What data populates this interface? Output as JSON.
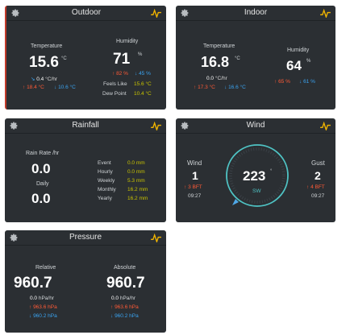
{
  "outdoor": {
    "title": "Outdoor",
    "temperature": {
      "label": "Temperature",
      "value": "15.6",
      "unit": "°C",
      "trend": "0.4",
      "trend_unit": "°C/hr",
      "max": "18.4 °C",
      "min": "10.6 °C"
    },
    "humidity": {
      "label": "Humidity",
      "value": "71",
      "unit": "%",
      "max": "82 %",
      "min": "45 %"
    },
    "feels_like": {
      "label": "Feels Like",
      "value": "15.6 °C"
    },
    "dew_point": {
      "label": "Dew Point",
      "value": "10.4 °C"
    }
  },
  "indoor": {
    "title": "Indoor",
    "temperature": {
      "label": "Temperature",
      "value": "16.8",
      "unit": "°C",
      "trend": "0.0",
      "trend_unit": "°C/hr",
      "max": "17.3 °C",
      "min": "16.6 °C"
    },
    "humidity": {
      "label": "Humidity",
      "value": "64",
      "unit": "%",
      "max": "65 %",
      "min": "61 %"
    }
  },
  "rainfall": {
    "title": "Rainfall",
    "rate_label": "Rain Rate /hr",
    "rate_value": "0.0",
    "daily_label": "Daily",
    "daily_value": "0.0",
    "rows": [
      {
        "label": "Event",
        "value": "0.0 mm"
      },
      {
        "label": "Hourly",
        "value": "0.0 mm"
      },
      {
        "label": "Weekly",
        "value": "5.3 mm"
      },
      {
        "label": "Monthly",
        "value": "16.2 mm"
      },
      {
        "label": "Yearly",
        "value": "16.2 mm"
      }
    ]
  },
  "wind": {
    "title": "Wind",
    "wind_label": "Wind",
    "wind_value": "1",
    "wind_bft": "3 BFT",
    "wind_time": "09:27",
    "direction_deg": "223",
    "deg_symbol": "°",
    "direction_card": "SW",
    "gust_label": "Gust",
    "gust_value": "2",
    "gust_bft": "4 BFT",
    "gust_time": "09:27"
  },
  "pressure": {
    "title": "Pressure",
    "relative": {
      "label": "Relative",
      "value": "960.7",
      "trend": "0.0",
      "trend_unit": "hPa/hr",
      "max": "963.6 hPa",
      "min": "960.2 hPa"
    },
    "absolute": {
      "label": "Absolute",
      "value": "960.7",
      "trend": "0.0",
      "trend_unit": "hPa/hr",
      "max": "963.6 hPa",
      "min": "960.2 hPa"
    }
  },
  "colors": {
    "card_bg": "#2b2f33",
    "max": "#ff5a36",
    "min": "#3aa3f0",
    "accent": "#c7c200",
    "compass": "#4fc3c4",
    "chart_icon": "#f0b400"
  },
  "icons": {
    "settings": "gear-icon",
    "chart": "chart-icon",
    "arrow_up": "arrow-up-icon",
    "arrow_down": "arrow-down-icon"
  }
}
